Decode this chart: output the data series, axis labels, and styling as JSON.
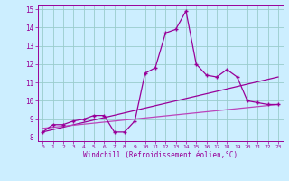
{
  "x_labels": [
    "0",
    "1",
    "2",
    "3",
    "4",
    "5",
    "6",
    "7",
    "8",
    "9",
    "10",
    "11",
    "12",
    "13",
    "14",
    "15",
    "16",
    "17",
    "18",
    "19",
    "20",
    "21",
    "22",
    "23"
  ],
  "main_line_y": [
    8.3,
    8.7,
    8.7,
    8.9,
    9.0,
    9.2,
    9.2,
    8.3,
    8.3,
    8.9,
    11.5,
    11.8,
    13.7,
    13.9,
    14.9,
    12.0,
    11.4,
    11.3,
    11.7,
    11.3,
    10.0,
    9.9,
    9.8,
    9.8
  ],
  "reg_line1": [
    8.3,
    11.3
  ],
  "reg_line2": [
    8.5,
    9.8
  ],
  "line_color": "#990099",
  "line_color2": "#bb44bb",
  "background_color": "#cceeff",
  "grid_color": "#99cccc",
  "ylim": [
    8,
    15
  ],
  "ylim_display": [
    8,
    15
  ],
  "xlabel": "Windchill (Refroidissement éolien,°C)",
  "marker": "+"
}
